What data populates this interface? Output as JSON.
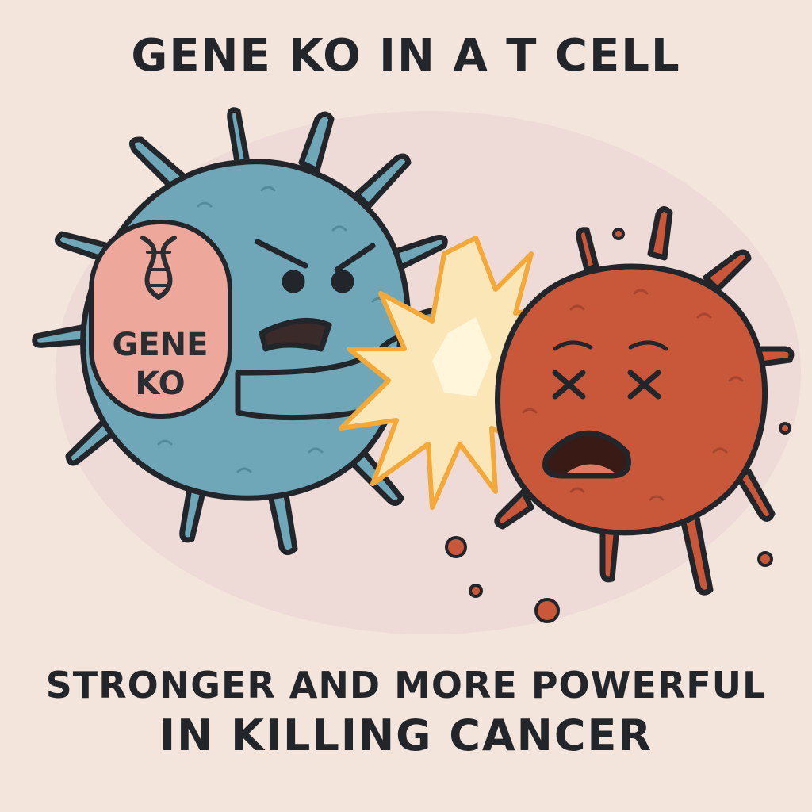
{
  "title": "GENE KO IN A T CELL",
  "badge": {
    "line1": "GENE",
    "line2": "KO"
  },
  "caption": {
    "line1": "STRONGER AND MORE POWERFUL",
    "line2": "IN KILLING CANCER"
  },
  "colors": {
    "background": "#f3e4dc",
    "t_cell": "#6fa7b8",
    "cancer_cell": "#c9573a",
    "badge": "#eea79b",
    "impact": "#f3a83a",
    "outline": "#22262b"
  },
  "icons": [
    "dna-icon",
    "fist-icon",
    "impact-burst-icon",
    "dead-eyes-icon"
  ]
}
